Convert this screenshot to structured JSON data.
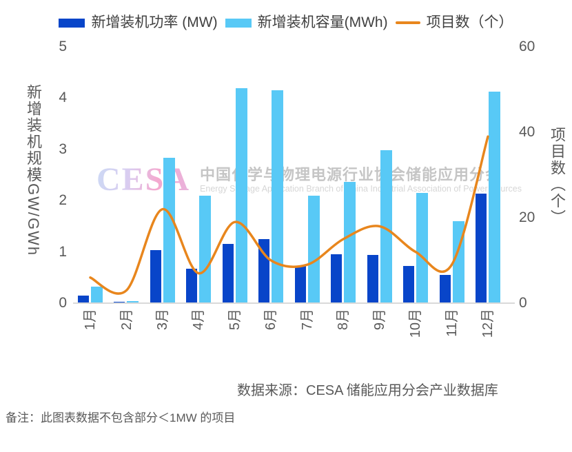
{
  "colors": {
    "power_bar": "#0845C9",
    "capacity_bar": "#58C9F6",
    "projects_line": "#E8861D",
    "axis_text": "#595959",
    "legend_text": "#404040",
    "axis_line": "#D9D9D9"
  },
  "watermark": {
    "logo": "CESA",
    "line1": "中国化学与物理电源行业协会储能应用分会",
    "line2": "Energy Storage Application Branch of China Industrial Association of Power Sources"
  },
  "footer": {
    "source": "数据来源：CESA 储能应用分会产业数据库",
    "note": "备注：此图表数据不包含部分＜1MW 的项目"
  },
  "chart_data": {
    "type": "bar",
    "subtype": "grouped bars + smooth line (dual axis)",
    "categories": [
      "1月",
      "2月",
      "3月",
      "4月",
      "5月",
      "6月",
      "7月",
      "8月",
      "9月",
      "10月",
      "11月",
      "12月"
    ],
    "series": [
      {
        "name": "新增装机功率 (MW)",
        "type": "bar",
        "axis": "left",
        "unit": "GW",
        "color": "#0845C9",
        "values": [
          0.15,
          0.03,
          1.03,
          0.67,
          1.15,
          1.25,
          0.73,
          0.96,
          0.94,
          0.72,
          0.55,
          2.14
        ]
      },
      {
        "name": "新增装机容量(MWh)",
        "type": "bar",
        "axis": "left",
        "unit": "GWh",
        "color": "#58C9F6",
        "values": [
          0.32,
          0.04,
          2.83,
          2.1,
          4.2,
          4.15,
          2.1,
          2.37,
          2.98,
          2.15,
          1.6,
          4.13
        ]
      },
      {
        "name": "项目数（个）",
        "type": "line",
        "axis": "right",
        "unit": "个",
        "color": "#E8861D",
        "values": [
          6,
          3,
          22,
          7,
          19,
          10,
          9,
          15,
          18,
          12,
          9,
          39
        ]
      }
    ],
    "left_axis": {
      "label": "新增装机规模GW/GWh",
      "range": [
        0,
        5
      ],
      "ticks": [
        0,
        1,
        2,
        3,
        4,
        5
      ]
    },
    "right_axis": {
      "label": "项目数（个）",
      "range": [
        0,
        60
      ],
      "ticks": [
        0,
        20,
        40,
        60
      ]
    },
    "grid": false,
    "legend_position": "top"
  }
}
